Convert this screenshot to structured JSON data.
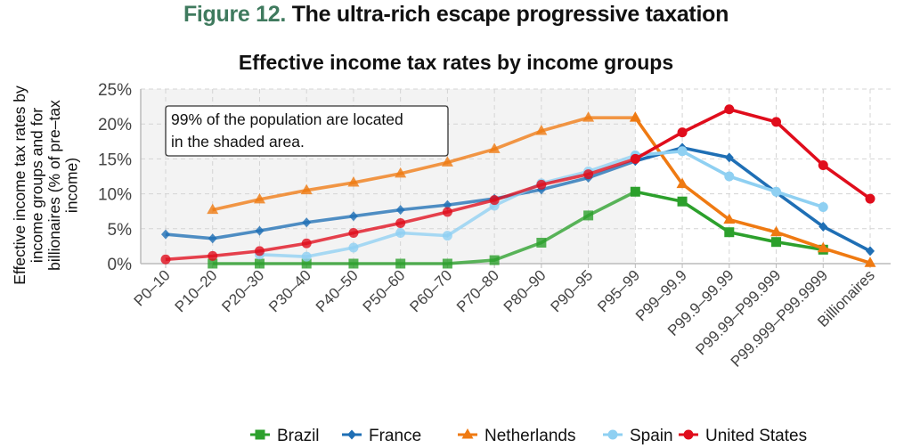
{
  "figure": {
    "number_label": "Figure 12.",
    "title": "The ultra-rich escape progressive taxation"
  },
  "chart_data": {
    "type": "line",
    "title": "Effective income tax rates by income groups",
    "xlabel": "",
    "ylabel": "Effective income tax rates by income groups  and for billionaires (% of pre–tax income)",
    "ylabel_lines": [
      "Effective income tax rates by",
      "income groups  and for",
      "billionaires (% of pre–tax",
      "income)"
    ],
    "ylim": [
      0,
      25
    ],
    "yticks": [
      0,
      5,
      10,
      15,
      20,
      25
    ],
    "ytick_labels": [
      "0%",
      "5%",
      "10%",
      "15%",
      "20%",
      "25%"
    ],
    "grid": true,
    "legend_position": "bottom",
    "categories": [
      "P0–10",
      "P10–20",
      "P20–30",
      "P30–40",
      "P40–50",
      "P50–60",
      "P60–70",
      "P70–80",
      "P80–90",
      "P90–95",
      "P95–99",
      "P99–99.9",
      "P99.9–99.99",
      "P99.99–P99.999",
      "P99.999–P99.9999",
      "Billionaires"
    ],
    "shaded_region": {
      "from": "P0–10",
      "to": "P95–99"
    },
    "annotation": [
      "99% of the population are located",
      "in the shaded area."
    ],
    "series": [
      {
        "name": "Brazil",
        "color": "#2ca02c",
        "marker": "square",
        "values": [
          null,
          0,
          0,
          0,
          0,
          0,
          0,
          0.5,
          3.0,
          6.9,
          10.3,
          8.9,
          4.5,
          3.1,
          2.0,
          null
        ]
      },
      {
        "name": "France",
        "color": "#1f6fb5",
        "marker": "diamond",
        "values": [
          4.2,
          3.6,
          4.7,
          5.9,
          6.8,
          7.7,
          8.4,
          9.3,
          10.6,
          12.3,
          14.7,
          16.6,
          15.2,
          10.2,
          5.3,
          1.8
        ]
      },
      {
        "name": "Netherlands",
        "color": "#ef7a12",
        "marker": "triangle",
        "values": [
          null,
          7.7,
          9.2,
          10.5,
          11.6,
          12.9,
          14.5,
          16.4,
          19.0,
          20.9,
          20.9,
          11.4,
          6.3,
          4.5,
          2.2,
          0.1
        ]
      },
      {
        "name": "Spain",
        "color": "#8fd0f2",
        "marker": "circle",
        "values": [
          null,
          null,
          1.3,
          1.0,
          2.3,
          4.4,
          4.0,
          8.3,
          11.5,
          13.2,
          15.5,
          16.1,
          12.5,
          10.3,
          8.1,
          null
        ]
      },
      {
        "name": "United States",
        "color": "#e00d1c",
        "marker": "circle",
        "values": [
          0.6,
          1.1,
          1.8,
          2.9,
          4.4,
          5.8,
          7.4,
          9.1,
          11.3,
          12.8,
          15.0,
          18.8,
          22.1,
          20.3,
          14.1,
          9.3
        ]
      }
    ]
  }
}
